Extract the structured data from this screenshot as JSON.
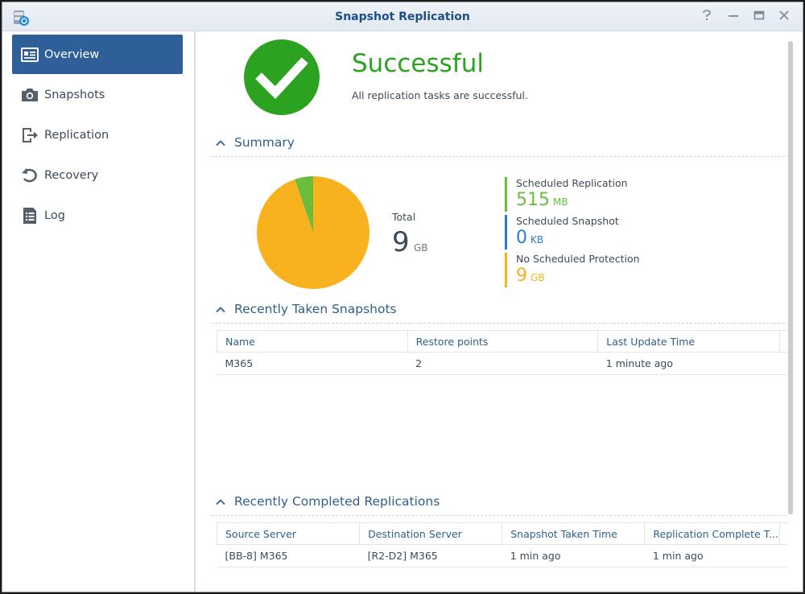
{
  "window": {
    "title": "Snapshot Replication",
    "controls": [
      "help-icon",
      "minimize-icon",
      "maximize-icon",
      "close-icon"
    ]
  },
  "sidebar": {
    "items": [
      {
        "label": "Overview",
        "icon": "overview-icon",
        "active": true
      },
      {
        "label": "Snapshots",
        "icon": "camera-icon",
        "active": false
      },
      {
        "label": "Replication",
        "icon": "replication-icon",
        "active": false
      },
      {
        "label": "Recovery",
        "icon": "recovery-icon",
        "active": false
      },
      {
        "label": "Log",
        "icon": "log-icon",
        "active": false
      }
    ]
  },
  "status": {
    "title": "Successful",
    "description": "All replication tasks are successful.",
    "color": "#2ba321"
  },
  "summary": {
    "title": "Summary",
    "total_label": "Total",
    "total_value": "9",
    "total_unit": "GB",
    "legend": [
      {
        "label": "Scheduled Replication",
        "value": "515",
        "unit": "MB",
        "color": "#6cbd3c"
      },
      {
        "label": "Scheduled Snapshot",
        "value": "0",
        "unit": "KB",
        "color": "#2f7bc2"
      },
      {
        "label": "No Scheduled Protection",
        "value": "9",
        "unit": "GB",
        "color": "#f8b21e"
      }
    ]
  },
  "chart_data": {
    "type": "pie",
    "labels": [
      "Scheduled Replication",
      "Scheduled Snapshot",
      "No Scheduled Protection"
    ],
    "values": [
      515,
      0,
      9216
    ],
    "units": "MB",
    "colors": [
      "#6cbd3c",
      "#2f7bc2",
      "#f8b21e"
    ]
  },
  "snapshots": {
    "title": "Recently Taken Snapshots",
    "columns": [
      "Name",
      "Restore points",
      "Last Update Time"
    ],
    "rows": [
      [
        "M365",
        "2",
        "1 minute ago"
      ]
    ]
  },
  "replications": {
    "title": "Recently Completed Replications",
    "columns": [
      "Source Server",
      "Destination Server",
      "Snapshot Taken Time",
      "Replication Complete T..."
    ],
    "rows": [
      [
        "[BB-8] M365",
        "[R2-D2] M365",
        "1 min ago",
        "1 min ago"
      ]
    ]
  }
}
